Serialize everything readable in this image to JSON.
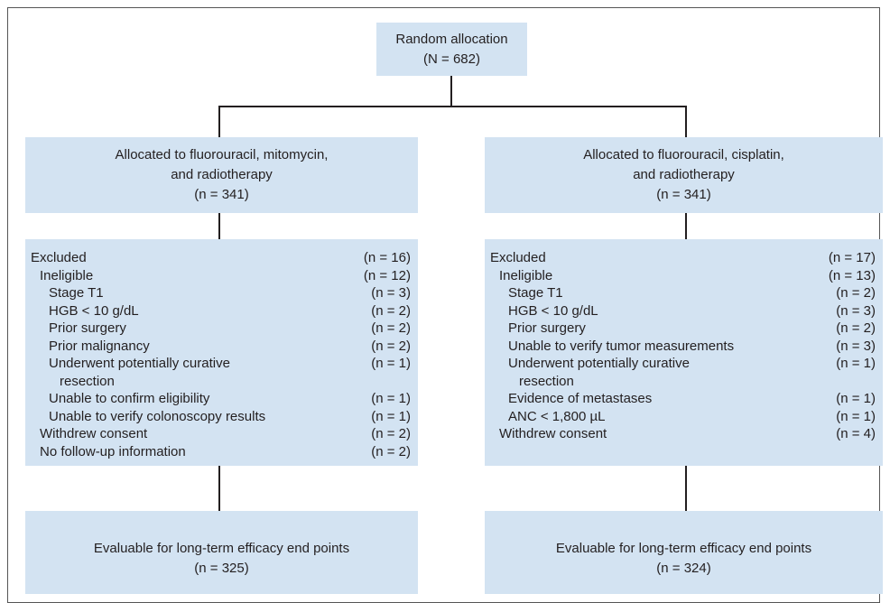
{
  "top": {
    "lines": [
      "Random allocation",
      "(N = 682)"
    ]
  },
  "arms": [
    {
      "allocated": [
        "Allocated to fluorouracil, mitomycin,",
        "and radiotherapy",
        "(n = 341)"
      ],
      "excluded": [
        {
          "label": [
            "Excluded"
          ],
          "n": "(n = 16)"
        },
        {
          "label": [
            "Ineligible"
          ],
          "n": "(n = 12)"
        },
        {
          "label": [
            "Stage T1"
          ],
          "n": "(n = 3)"
        },
        {
          "label": [
            "HGB < 10 g/dL"
          ],
          "n": "(n = 2)"
        },
        {
          "label": [
            "Prior surgery"
          ],
          "n": "(n = 2)"
        },
        {
          "label": [
            "Prior malignancy"
          ],
          "n": "(n = 2)"
        },
        {
          "label": [
            "Underwent potentially curative",
            "resection"
          ],
          "n": "(n = 1)"
        },
        {
          "label": [
            "Unable to confirm eligibility"
          ],
          "n": "(n = 1)"
        },
        {
          "label": [
            "Unable to verify colonoscopy results"
          ],
          "n": "(n = 1)"
        },
        {
          "label": [
            "Withdrew consent"
          ],
          "n": "(n = 2)"
        },
        {
          "label": [
            "No follow-up information"
          ],
          "n": "(n = 2)"
        }
      ],
      "evaluable": [
        "Evaluable for long-term efficacy end points",
        "(n = 325)"
      ]
    },
    {
      "allocated": [
        "Allocated to fluorouracil, cisplatin,",
        "and radiotherapy",
        "(n = 341)"
      ],
      "excluded": [
        {
          "label": [
            "Excluded"
          ],
          "n": "(n = 17)"
        },
        {
          "label": [
            "Ineligible"
          ],
          "n": "(n = 13)"
        },
        {
          "label": [
            "Stage T1"
          ],
          "n": "(n = 2)"
        },
        {
          "label": [
            "HGB < 10 g/dL"
          ],
          "n": "(n = 3)"
        },
        {
          "label": [
            "Prior surgery"
          ],
          "n": "(n = 2)"
        },
        {
          "label": [
            "Unable to verify tumor measurements"
          ],
          "n": "(n = 3)"
        },
        {
          "label": [
            "Underwent potentially curative",
            "resection"
          ],
          "n": "(n = 1)"
        },
        {
          "label": [
            "Evidence of metastases"
          ],
          "n": "(n = 1)"
        },
        {
          "label": [
            "ANC < 1,800 µL"
          ],
          "n": "(n = 1)"
        },
        {
          "label": [
            "Withdrew consent"
          ],
          "n": "(n = 4)"
        }
      ],
      "evaluable": [
        "Evaluable for long-term efficacy end points",
        "(n = 324)"
      ]
    }
  ]
}
